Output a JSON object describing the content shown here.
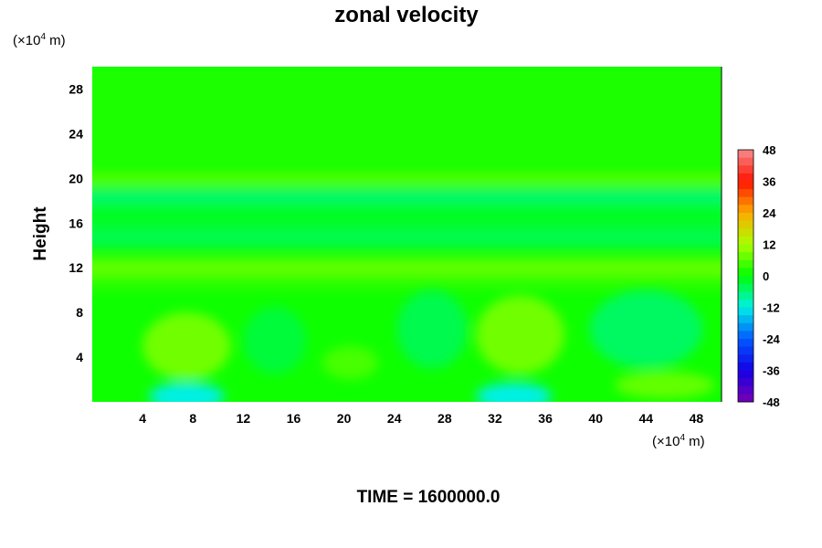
{
  "chart_data": {
    "type": "heatmap",
    "title": "zonal velocity",
    "ylabel": "Height",
    "y_unit_prefix": "(×10",
    "y_unit_exp": "4",
    "y_unit_suffix": " m)",
    "x_unit_prefix": "(×10",
    "x_unit_exp": "4",
    "x_unit_suffix": " m)",
    "xlim": [
      0,
      50
    ],
    "ylim": [
      0,
      30
    ],
    "x_ticks": [
      "4",
      "8",
      "12",
      "16",
      "20",
      "24",
      "28",
      "32",
      "36",
      "40",
      "44",
      "48"
    ],
    "y_ticks": [
      "4",
      "8",
      "12",
      "16",
      "20",
      "24",
      "28"
    ],
    "x_tick_values": [
      4,
      8,
      12,
      16,
      20,
      24,
      28,
      32,
      36,
      40,
      44,
      48
    ],
    "y_tick_values": [
      4,
      8,
      12,
      16,
      20,
      24,
      28
    ],
    "colorbar": {
      "min": -48,
      "max": 48,
      "labels": [
        "48",
        "36",
        "24",
        "12",
        "0",
        "-12",
        "-24",
        "-36",
        "-48"
      ],
      "label_values": [
        48,
        36,
        24,
        12,
        0,
        -12,
        -24,
        -36,
        -48
      ]
    },
    "bands": [
      {
        "y_range": [
          20.5,
          30
        ],
        "value": 2
      },
      {
        "y_range": [
          19.3,
          20.3
        ],
        "value": 6
      },
      {
        "y_range": [
          17.7,
          19.0
        ],
        "value": -6
      },
      {
        "y_range": [
          15.8,
          17.5
        ],
        "value": -2
      },
      {
        "y_range": [
          13.8,
          15.6
        ],
        "value": -4
      },
      {
        "y_range": [
          11.3,
          12.8
        ],
        "value": 7
      },
      {
        "y_range": [
          10.0,
          11.2
        ],
        "value": 3
      }
    ],
    "features": [
      {
        "x": 7.5,
        "y": 5,
        "rx": 3.5,
        "ry": 3,
        "value": 8
      },
      {
        "x": 34,
        "y": 6,
        "rx": 3.5,
        "ry": 3.5,
        "value": 8
      },
      {
        "x": 14.5,
        "y": 5.5,
        "rx": 2.5,
        "ry": 3,
        "value": -3
      },
      {
        "x": 27,
        "y": 6.5,
        "rx": 2.8,
        "ry": 3.5,
        "value": -4
      },
      {
        "x": 44,
        "y": 6.5,
        "rx": 4.5,
        "ry": 3.5,
        "value": -5
      },
      {
        "x": 20.5,
        "y": 3.5,
        "rx": 2.2,
        "ry": 1.5,
        "value": 5
      },
      {
        "x": 45.5,
        "y": 1.5,
        "rx": 4,
        "ry": 1.2,
        "value": 7
      },
      {
        "x": 7.5,
        "y": 0.5,
        "rx": 3,
        "ry": 1.2,
        "value": -12
      },
      {
        "x": 33.5,
        "y": 0.5,
        "rx": 3,
        "ry": 1.2,
        "value": -12
      }
    ],
    "background_value": 1
  },
  "footer": {
    "time_label": "TIME = 1600000.0"
  }
}
